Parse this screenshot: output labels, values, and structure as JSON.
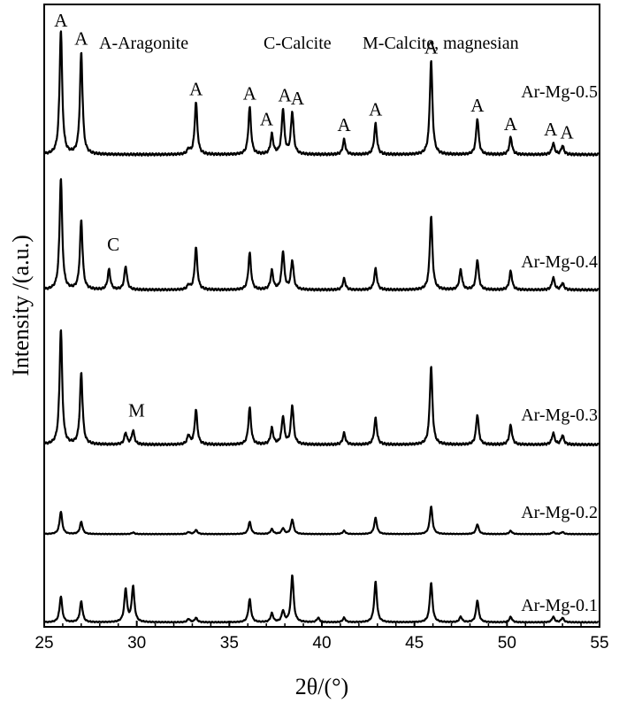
{
  "chart_data": {
    "type": "line",
    "xlabel": "2θ/(°)",
    "ylabel": "Intensity /(a.u.)",
    "xlim": [
      25,
      55
    ],
    "xticks": [
      "25",
      "30",
      "35",
      "40",
      "45",
      "50",
      "55"
    ],
    "legend_text": {
      "aragonite": "A-Aragonite",
      "calcite": "C-Calcite",
      "mg_calcite": "M-Calcite, magnesian"
    },
    "peak_markers": {
      "aragonite": "A",
      "calcite": "C",
      "mg_calcite": "M"
    },
    "series": [
      {
        "name": "Ar-Mg-0.5",
        "baseline": 0.06,
        "peaks": [
          [
            25.9,
            1.0
          ],
          [
            27.0,
            0.82
          ],
          [
            32.8,
            0.04
          ],
          [
            33.2,
            0.42
          ],
          [
            36.1,
            0.38
          ],
          [
            37.3,
            0.16
          ],
          [
            37.9,
            0.36
          ],
          [
            38.4,
            0.34
          ],
          [
            41.2,
            0.12
          ],
          [
            42.9,
            0.25
          ],
          [
            45.9,
            0.76
          ],
          [
            48.4,
            0.29
          ],
          [
            50.2,
            0.14
          ],
          [
            52.5,
            0.09
          ],
          [
            53.0,
            0.07
          ]
        ]
      },
      {
        "name": "Ar-Mg-0.4",
        "baseline": 0.06,
        "peaks": [
          [
            25.9,
            1.0
          ],
          [
            27.0,
            0.62
          ],
          [
            28.5,
            0.18
          ],
          [
            29.4,
            0.21
          ],
          [
            32.8,
            0.04
          ],
          [
            33.2,
            0.38
          ],
          [
            36.1,
            0.33
          ],
          [
            37.3,
            0.17
          ],
          [
            37.9,
            0.34
          ],
          [
            38.4,
            0.26
          ],
          [
            41.2,
            0.1
          ],
          [
            42.9,
            0.19
          ],
          [
            45.9,
            0.66
          ],
          [
            47.5,
            0.18
          ],
          [
            48.4,
            0.27
          ],
          [
            50.2,
            0.17
          ],
          [
            52.5,
            0.11
          ],
          [
            53.0,
            0.06
          ]
        ]
      },
      {
        "name": "Ar-Mg-0.3",
        "baseline": 0.06,
        "peaks": [
          [
            25.9,
            1.0
          ],
          [
            27.0,
            0.62
          ],
          [
            29.4,
            0.1
          ],
          [
            29.8,
            0.12
          ],
          [
            32.8,
            0.08
          ],
          [
            33.2,
            0.3
          ],
          [
            36.1,
            0.32
          ],
          [
            37.3,
            0.14
          ],
          [
            37.9,
            0.24
          ],
          [
            38.4,
            0.34
          ],
          [
            41.2,
            0.1
          ],
          [
            42.9,
            0.23
          ],
          [
            45.9,
            0.68
          ],
          [
            48.4,
            0.26
          ],
          [
            50.2,
            0.17
          ],
          [
            52.5,
            0.1
          ],
          [
            53.0,
            0.08
          ]
        ]
      },
      {
        "name": "Ar-Mg-0.2",
        "baseline": 0.06,
        "peaks": [
          [
            25.9,
            0.55
          ],
          [
            27.0,
            0.3
          ],
          [
            29.8,
            0.04
          ],
          [
            32.8,
            0.05
          ],
          [
            33.2,
            0.1
          ],
          [
            36.1,
            0.3
          ],
          [
            37.3,
            0.12
          ],
          [
            37.9,
            0.14
          ],
          [
            38.4,
            0.36
          ],
          [
            41.2,
            0.08
          ],
          [
            42.9,
            0.4
          ],
          [
            45.9,
            0.68
          ],
          [
            48.4,
            0.24
          ],
          [
            50.2,
            0.08
          ],
          [
            52.5,
            0.05
          ],
          [
            53.0,
            0.05
          ]
        ]
      },
      {
        "name": "Ar-Mg-0.1",
        "baseline": 0.05,
        "peaks": [
          [
            25.9,
            0.47
          ],
          [
            27.0,
            0.38
          ],
          [
            29.4,
            0.6
          ],
          [
            29.8,
            0.65
          ],
          [
            32.8,
            0.06
          ],
          [
            33.2,
            0.08
          ],
          [
            36.1,
            0.42
          ],
          [
            37.3,
            0.16
          ],
          [
            37.9,
            0.2
          ],
          [
            38.4,
            0.86
          ],
          [
            39.8,
            0.08
          ],
          [
            41.2,
            0.08
          ],
          [
            42.9,
            0.74
          ],
          [
            45.9,
            0.72
          ],
          [
            47.5,
            0.1
          ],
          [
            48.4,
            0.4
          ],
          [
            50.2,
            0.1
          ],
          [
            52.5,
            0.1
          ],
          [
            53.0,
            0.08
          ]
        ]
      }
    ],
    "annotations": [
      {
        "text": "A",
        "x": 25.9,
        "series": "Ar-Mg-0.5"
      },
      {
        "text": "A",
        "x": 27.0,
        "series": "Ar-Mg-0.5"
      },
      {
        "text": "A",
        "x": 33.2,
        "series": "Ar-Mg-0.5"
      },
      {
        "text": "A",
        "x": 36.1,
        "series": "Ar-Mg-0.5"
      },
      {
        "text": "A",
        "x": 37.3,
        "series": "Ar-Mg-0.5"
      },
      {
        "text": "A",
        "x": 37.9,
        "series": "Ar-Mg-0.5"
      },
      {
        "text": "A",
        "x": 38.4,
        "series": "Ar-Mg-0.5"
      },
      {
        "text": "A",
        "x": 41.2,
        "series": "Ar-Mg-0.5"
      },
      {
        "text": "A",
        "x": 42.9,
        "series": "Ar-Mg-0.5"
      },
      {
        "text": "A",
        "x": 45.9,
        "series": "Ar-Mg-0.5"
      },
      {
        "text": "A",
        "x": 48.4,
        "series": "Ar-Mg-0.5"
      },
      {
        "text": "A",
        "x": 50.2,
        "series": "Ar-Mg-0.5"
      },
      {
        "text": "A",
        "x": 52.5,
        "series": "Ar-Mg-0.5"
      },
      {
        "text": "A",
        "x": 53.0,
        "series": "Ar-Mg-0.5"
      },
      {
        "text": "C",
        "x": 29.4,
        "series": "Ar-Mg-0.4"
      },
      {
        "text": "M",
        "x": 29.8,
        "series": "Ar-Mg-0.3"
      }
    ],
    "grid": false,
    "line_color": "#000000"
  }
}
